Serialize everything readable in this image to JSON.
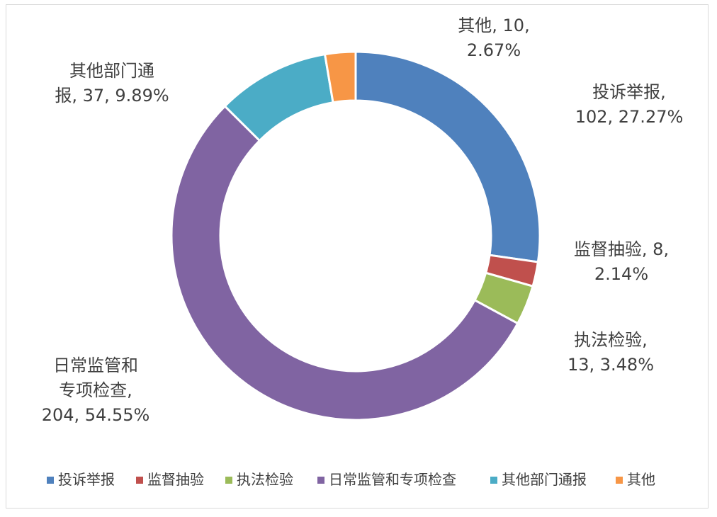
{
  "chart_data": {
    "type": "pie",
    "variant": "donut",
    "categories": [
      "投诉举报",
      "监督抽验",
      "执法检验",
      "日常监管和专项检查",
      "其他部门通报",
      "其他"
    ],
    "values": [
      102,
      8,
      13,
      204,
      37,
      10
    ],
    "percents": [
      "27.27%",
      "2.14%",
      "3.48%",
      "54.55%",
      "9.89%",
      "2.67%"
    ],
    "colors": [
      "#4F81BD",
      "#C0504D",
      "#9BBB59",
      "#8064A2",
      "#4BACC6",
      "#F79646"
    ],
    "data_labels": [
      [
        "投诉举报,",
        "102, 27.27%"
      ],
      [
        "监督抽验, 8,",
        "2.14%"
      ],
      [
        "执法检验,",
        "13, 3.48%"
      ],
      [
        "日常监管和",
        "专项检查,",
        "204, 54.55%"
      ],
      [
        "其他部门通",
        "报, 37, 9.89%"
      ],
      [
        "其他, 10,",
        "2.67%"
      ]
    ],
    "legend_position": "bottom",
    "title": ""
  }
}
